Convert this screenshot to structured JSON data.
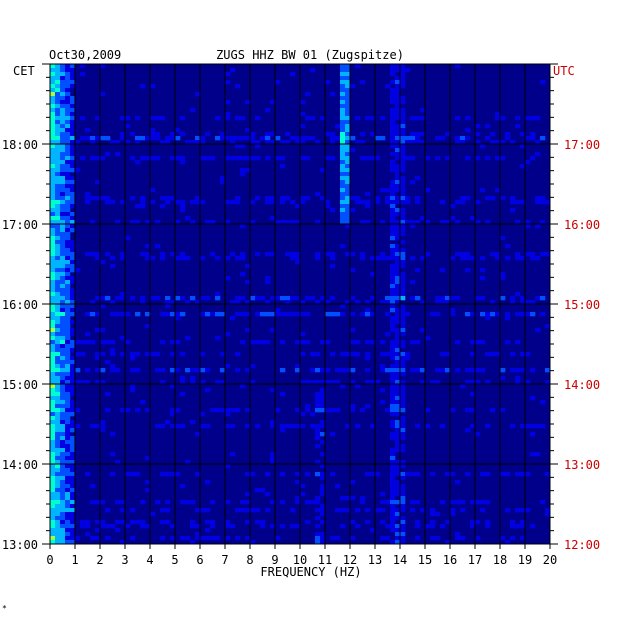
{
  "chart_data": {
    "type": "heatmap",
    "title": "ZUGS HHZ BW 01 (Zugspitze)",
    "date": "Oct30,2009",
    "xlabel": "FREQUENCY (HZ)",
    "xlim": [
      0,
      20
    ],
    "x_ticks": [
      "0",
      "1",
      "2",
      "3",
      "4",
      "5",
      "6",
      "7",
      "8",
      "9",
      "10",
      "11",
      "12",
      "13",
      "14",
      "15",
      "16",
      "17",
      "18",
      "19",
      "20"
    ],
    "left_axis_label": "CET",
    "right_axis_label": "UTC",
    "y_time_range_cet": [
      "13:00",
      "19:00"
    ],
    "left_ticks": [
      {
        "label": "18:00",
        "hour": 18
      },
      {
        "label": "17:00",
        "hour": 17
      },
      {
        "label": "16:00",
        "hour": 16
      },
      {
        "label": "15:00",
        "hour": 15
      },
      {
        "label": "14:00",
        "hour": 14
      },
      {
        "label": "13:00",
        "hour": 13
      }
    ],
    "right_ticks": [
      {
        "label": "17:00",
        "hour": 18
      },
      {
        "label": "16:00",
        "hour": 17
      },
      {
        "label": "15:00",
        "hour": 16
      },
      {
        "label": "14:00",
        "hour": 15
      },
      {
        "label": "13:00",
        "hour": 14
      },
      {
        "label": "12:00",
        "hour": 13
      }
    ],
    "colormap": [
      "#00008b",
      "#0000e0",
      "#0050ff",
      "#00b4ff",
      "#00ffd0",
      "#a0ff40",
      "#ffff00",
      "#ff8000",
      "#ff0000"
    ],
    "grid": true,
    "corner_mark": "*"
  }
}
